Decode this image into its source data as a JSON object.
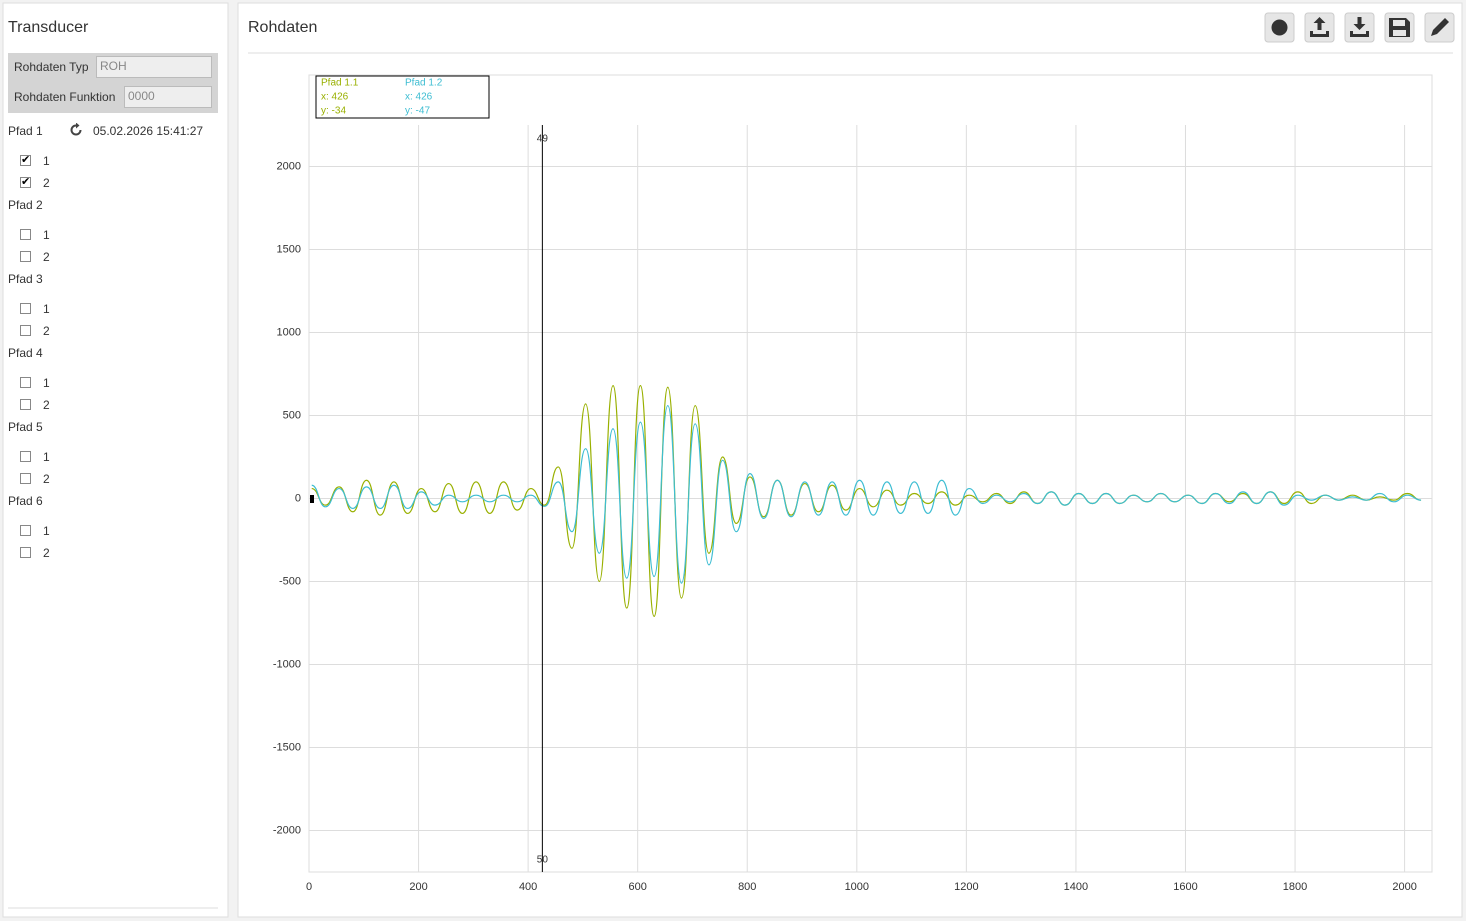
{
  "sidebar": {
    "title": "Transducer",
    "fields": [
      {
        "label": "Rohdaten Typ",
        "value": "ROH"
      },
      {
        "label": "Rohdaten Funktion",
        "value": "0000"
      }
    ],
    "timestamp": "05.02.2026 15:41:27",
    "paths": [
      {
        "name": "Pfad 1",
        "channels": [
          {
            "label": "1",
            "checked": true
          },
          {
            "label": "2",
            "checked": true
          }
        ]
      },
      {
        "name": "Pfad 2",
        "channels": [
          {
            "label": "1",
            "checked": false
          },
          {
            "label": "2",
            "checked": false
          }
        ]
      },
      {
        "name": "Pfad 3",
        "channels": [
          {
            "label": "1",
            "checked": false
          },
          {
            "label": "2",
            "checked": false
          }
        ]
      },
      {
        "name": "Pfad 4",
        "channels": [
          {
            "label": "1",
            "checked": false
          },
          {
            "label": "2",
            "checked": false
          }
        ]
      },
      {
        "name": "Pfad 5",
        "channels": [
          {
            "label": "1",
            "checked": false
          },
          {
            "label": "2",
            "checked": false
          }
        ]
      },
      {
        "name": "Pfad 6",
        "channels": [
          {
            "label": "1",
            "checked": false
          },
          {
            "label": "2",
            "checked": false
          }
        ]
      }
    ]
  },
  "panel": {
    "title": "Rohdaten"
  },
  "chart_data": {
    "type": "line",
    "x": [
      5,
      30,
      55,
      80,
      105,
      130,
      155,
      180,
      205,
      230,
      255,
      280,
      305,
      330,
      355,
      380,
      405,
      430,
      455,
      480,
      505,
      530,
      555,
      580,
      605,
      630,
      655,
      680,
      705,
      730,
      755,
      780,
      805,
      830,
      855,
      880,
      905,
      930,
      955,
      980,
      1005,
      1030,
      1055,
      1080,
      1105,
      1130,
      1155,
      1180,
      1205,
      1230,
      1255,
      1280,
      1305,
      1330,
      1355,
      1380,
      1405,
      1430,
      1455,
      1480,
      1505,
      1530,
      1555,
      1580,
      1605,
      1630,
      1655,
      1680,
      1705,
      1730,
      1755,
      1780,
      1805,
      1830,
      1855,
      1880,
      1905,
      1930,
      1955,
      1980,
      2005,
      2030
    ],
    "series": [
      {
        "name": "Pfad 1.1",
        "color": "#99b000",
        "values": [
          60,
          -40,
          70,
          -80,
          110,
          -100,
          100,
          -90,
          60,
          -80,
          90,
          -90,
          100,
          -90,
          100,
          -70,
          60,
          -40,
          190,
          -300,
          570,
          -500,
          680,
          -660,
          680,
          -710,
          670,
          -600,
          560,
          -330,
          250,
          -150,
          130,
          -110,
          110,
          -100,
          90,
          -80,
          80,
          -70,
          60,
          -50,
          50,
          -40,
          30,
          -30,
          40,
          -40,
          20,
          -20,
          30,
          -30,
          40,
          -30,
          40,
          -40,
          30,
          -30,
          30,
          -30,
          20,
          -20,
          30,
          -20,
          20,
          -30,
          30,
          -20,
          30,
          -30,
          40,
          -30,
          40,
          -30,
          20,
          -10,
          20,
          -10,
          10,
          -10,
          30,
          -10
        ]
      },
      {
        "name": "Pfad 1.2",
        "color": "#3dbdd2",
        "values": [
          80,
          -50,
          60,
          -60,
          70,
          -60,
          80,
          -60,
          40,
          -40,
          20,
          -20,
          20,
          -20,
          20,
          -20,
          20,
          -47,
          100,
          -200,
          300,
          -330,
          420,
          -480,
          460,
          -470,
          560,
          -510,
          450,
          -400,
          230,
          -200,
          150,
          -120,
          110,
          -110,
          100,
          -100,
          100,
          -100,
          110,
          -100,
          100,
          -90,
          100,
          -90,
          110,
          -100,
          60,
          -30,
          20,
          -20,
          30,
          -30,
          40,
          -40,
          30,
          -30,
          30,
          -30,
          20,
          -20,
          30,
          -20,
          20,
          -30,
          30,
          -30,
          40,
          -30,
          40,
          -40,
          20,
          -10,
          20,
          -10,
          10,
          -10,
          30,
          -20,
          20,
          -10
        ]
      }
    ],
    "xlim": [
      0,
      2050
    ],
    "ylim": [
      -2250,
      2250
    ],
    "xticks": [
      0,
      200,
      400,
      600,
      800,
      1000,
      1200,
      1400,
      1600,
      1800,
      2000
    ],
    "yticks": [
      -2000,
      -1500,
      -1000,
      -500,
      0,
      500,
      1000,
      1500,
      2000
    ],
    "grid": true,
    "cursor": {
      "x": 426,
      "top_label": "49",
      "bottom_label": "50"
    },
    "tooltip": [
      {
        "x": "x: 426",
        "y": "y: -34"
      },
      {
        "x": "x: 426",
        "y": "y: -47"
      }
    ]
  }
}
